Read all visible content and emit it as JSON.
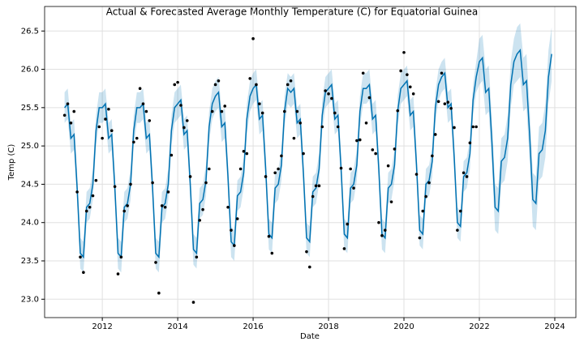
{
  "chart_data": {
    "type": "line",
    "title": "Actual & Forecasted Average Monthly Temperature (C) for Equatorial Guinea",
    "x_label": "Date",
    "y_label": "Temp (C)",
    "xlim": [
      2010.47,
      2024.56
    ],
    "ylim": [
      22.76,
      26.82
    ],
    "xticks": [
      2012,
      2014,
      2016,
      2018,
      2020,
      2022,
      2024
    ],
    "yticks": [
      {
        "value": 23,
        "label": "23.0"
      },
      23.5,
      {
        "value": 24,
        "label": "24.0"
      },
      24.5,
      {
        "value": 25,
        "label": "25.0"
      },
      25.5,
      {
        "value": 26,
        "label": "26.0"
      },
      26.5
    ],
    "grid": true,
    "color": "#0072B2",
    "band_color": "#0072B2",
    "point_color": "#000000",
    "x": [
      2011,
      2011.083,
      2011.167,
      2011.25,
      2011.333,
      2011.417,
      2011.5,
      2011.583,
      2011.667,
      2011.75,
      2011.833,
      2011.917,
      2012,
      2012.083,
      2012.167,
      2012.25,
      2012.333,
      2012.417,
      2012.5,
      2012.583,
      2012.667,
      2012.75,
      2012.833,
      2012.917,
      2013,
      2013.083,
      2013.167,
      2013.25,
      2013.333,
      2013.417,
      2013.5,
      2013.583,
      2013.667,
      2013.75,
      2013.833,
      2013.917,
      2014,
      2014.083,
      2014.167,
      2014.25,
      2014.333,
      2014.417,
      2014.5,
      2014.583,
      2014.667,
      2014.75,
      2014.833,
      2014.917,
      2015,
      2015.083,
      2015.167,
      2015.25,
      2015.333,
      2015.417,
      2015.5,
      2015.583,
      2015.667,
      2015.75,
      2015.833,
      2015.917,
      2016,
      2016.083,
      2016.167,
      2016.25,
      2016.333,
      2016.417,
      2016.5,
      2016.583,
      2016.667,
      2016.75,
      2016.833,
      2016.917,
      2017,
      2017.083,
      2017.167,
      2017.25,
      2017.333,
      2017.417,
      2017.5,
      2017.583,
      2017.667,
      2017.75,
      2017.833,
      2017.917,
      2018,
      2018.083,
      2018.167,
      2018.25,
      2018.333,
      2018.417,
      2018.5,
      2018.583,
      2018.667,
      2018.75,
      2018.833,
      2018.917,
      2019,
      2019.083,
      2019.167,
      2019.25,
      2019.333,
      2019.417,
      2019.5,
      2019.583,
      2019.667,
      2019.75,
      2019.833,
      2019.917,
      2020,
      2020.083,
      2020.167,
      2020.25,
      2020.333,
      2020.417,
      2020.5,
      2020.583,
      2020.667,
      2020.75,
      2020.833,
      2020.917,
      2021,
      2021.083,
      2021.167,
      2021.25,
      2021.333,
      2021.417,
      2021.5,
      2021.583,
      2021.667,
      2021.75,
      2021.833,
      2021.917,
      2022,
      2022.083,
      2022.167,
      2022.25,
      2022.333,
      2022.417,
      2022.5,
      2022.583,
      2022.667,
      2022.75,
      2022.833,
      2022.917,
      2023,
      2023.083,
      2023.167,
      2023.25,
      2023.333,
      2023.417,
      2023.5,
      2023.583,
      2023.667,
      2023.75,
      2023.833,
      2023.917
    ],
    "forecast": [
      25.5,
      25.55,
      25.1,
      25.15,
      24.45,
      23.6,
      23.55,
      24.2,
      24.25,
      24.5,
      25.2,
      25.5,
      25.5,
      25.55,
      25.1,
      25.15,
      24.45,
      23.6,
      23.55,
      24.2,
      24.25,
      24.5,
      25.2,
      25.5,
      25.5,
      25.55,
      25.1,
      25.15,
      24.45,
      23.6,
      23.55,
      24.2,
      24.25,
      24.5,
      25.2,
      25.5,
      25.55,
      25.6,
      25.15,
      25.2,
      24.5,
      23.65,
      23.6,
      24.25,
      24.3,
      24.55,
      25.25,
      25.55,
      25.65,
      25.7,
      25.25,
      25.3,
      24.6,
      23.75,
      23.7,
      24.35,
      24.4,
      24.65,
      25.35,
      25.65,
      25.75,
      25.8,
      25.35,
      25.4,
      24.7,
      23.85,
      23.8,
      24.45,
      24.5,
      24.75,
      25.45,
      25.75,
      25.7,
      25.75,
      25.3,
      25.35,
      24.65,
      23.8,
      23.75,
      24.4,
      24.45,
      24.7,
      25.4,
      25.7,
      25.75,
      25.8,
      25.35,
      25.4,
      24.7,
      23.85,
      23.8,
      24.45,
      24.5,
      24.75,
      25.45,
      25.75,
      25.75,
      25.8,
      25.35,
      25.4,
      24.7,
      23.85,
      23.8,
      24.45,
      24.5,
      24.75,
      25.45,
      25.75,
      25.8,
      25.85,
      25.4,
      25.45,
      24.75,
      23.9,
      23.85,
      24.5,
      24.55,
      24.8,
      25.5,
      25.8,
      25.9,
      25.95,
      25.5,
      25.55,
      24.85,
      24.0,
      23.95,
      24.6,
      24.65,
      24.9,
      25.6,
      25.9,
      26.1,
      26.15,
      25.7,
      25.75,
      25.05,
      24.2,
      24.15,
      24.8,
      24.85,
      25.1,
      25.8,
      26.1,
      26.2,
      26.25,
      25.8,
      25.85,
      25.15,
      24.3,
      24.25,
      24.9,
      24.95,
      25.2,
      25.9,
      26.2
    ],
    "lower": [
      25.3,
      25.35,
      24.9,
      24.95,
      24.25,
      23.4,
      23.35,
      24.0,
      24.05,
      24.3,
      25.0,
      25.3,
      25.3,
      25.35,
      24.9,
      24.95,
      24.25,
      23.4,
      23.35,
      24.0,
      24.05,
      24.3,
      25.0,
      25.3,
      25.3,
      25.35,
      24.9,
      24.95,
      24.25,
      23.4,
      23.35,
      24.0,
      24.05,
      24.3,
      25.0,
      25.3,
      25.35,
      25.4,
      24.95,
      25.0,
      24.3,
      23.45,
      23.4,
      24.05,
      24.1,
      24.35,
      25.05,
      25.35,
      25.45,
      25.5,
      25.05,
      25.1,
      24.4,
      23.55,
      23.5,
      24.15,
      24.2,
      24.45,
      25.15,
      25.45,
      25.55,
      25.6,
      25.15,
      25.2,
      24.5,
      23.65,
      23.6,
      24.25,
      24.3,
      24.55,
      25.25,
      25.55,
      25.5,
      25.55,
      25.1,
      25.15,
      24.45,
      23.6,
      23.55,
      24.2,
      24.25,
      24.5,
      25.2,
      25.5,
      25.55,
      25.6,
      25.15,
      25.2,
      24.5,
      23.65,
      23.6,
      24.25,
      24.3,
      24.55,
      25.25,
      25.55,
      25.55,
      25.6,
      25.15,
      25.2,
      24.5,
      23.65,
      23.6,
      24.25,
      24.3,
      24.55,
      25.25,
      25.55,
      25.6,
      25.65,
      25.2,
      25.25,
      24.55,
      23.7,
      23.65,
      24.3,
      24.35,
      24.6,
      25.3,
      25.6,
      25.7,
      25.75,
      25.3,
      25.35,
      24.65,
      23.8,
      23.75,
      24.4,
      24.45,
      24.7,
      25.4,
      25.7,
      25.8,
      25.85,
      25.4,
      25.45,
      24.75,
      23.9,
      23.85,
      24.5,
      24.55,
      24.8,
      25.5,
      25.8,
      25.85,
      25.9,
      25.45,
      25.5,
      24.8,
      23.95,
      23.9,
      24.55,
      24.6,
      24.85,
      25.55,
      25.85
    ],
    "upper": [
      25.7,
      25.75,
      25.3,
      25.35,
      24.65,
      23.8,
      23.75,
      24.4,
      24.45,
      24.7,
      25.4,
      25.7,
      25.7,
      25.75,
      25.3,
      25.35,
      24.65,
      23.8,
      23.75,
      24.4,
      24.45,
      24.7,
      25.4,
      25.7,
      25.7,
      25.75,
      25.3,
      25.35,
      24.65,
      23.8,
      23.75,
      24.4,
      24.45,
      24.7,
      25.4,
      25.7,
      25.75,
      25.8,
      25.35,
      25.4,
      24.7,
      23.85,
      23.8,
      24.45,
      24.5,
      24.75,
      25.45,
      25.75,
      25.85,
      25.9,
      25.45,
      25.5,
      24.8,
      23.95,
      23.9,
      24.55,
      24.6,
      24.85,
      25.55,
      25.85,
      25.95,
      26.0,
      25.55,
      25.6,
      24.9,
      24.05,
      24.0,
      24.65,
      24.7,
      24.95,
      25.65,
      25.95,
      25.9,
      25.95,
      25.5,
      25.55,
      24.85,
      24.0,
      23.95,
      24.6,
      24.65,
      24.9,
      25.6,
      25.9,
      25.95,
      26.0,
      25.55,
      25.6,
      24.9,
      24.05,
      24.0,
      24.65,
      24.7,
      24.95,
      25.65,
      25.95,
      25.95,
      26.0,
      25.55,
      25.6,
      24.9,
      24.05,
      24.0,
      24.65,
      24.7,
      24.95,
      25.65,
      25.95,
      26.0,
      26.05,
      25.6,
      25.65,
      24.95,
      24.1,
      24.05,
      24.7,
      24.75,
      25.0,
      25.7,
      26.0,
      26.1,
      26.15,
      25.7,
      25.75,
      25.05,
      24.2,
      24.15,
      24.8,
      24.85,
      25.1,
      25.8,
      26.1,
      26.4,
      26.45,
      26.0,
      26.05,
      25.35,
      24.5,
      24.45,
      25.1,
      25.15,
      25.4,
      26.1,
      26.4,
      26.55,
      26.6,
      26.15,
      26.2,
      25.5,
      24.65,
      24.6,
      25.25,
      25.3,
      25.55,
      26.25,
      26.55
    ],
    "actual": [
      25.4,
      25.55,
      25.3,
      25.45,
      24.4,
      23.55,
      23.35,
      24.15,
      24.2,
      24.35,
      24.55,
      25.25,
      25.1,
      25.35,
      25.48,
      25.2,
      24.47,
      23.33,
      23.55,
      24.15,
      24.22,
      24.5,
      25.05,
      25.1,
      25.75,
      25.55,
      25.45,
      25.33,
      24.52,
      23.48,
      23.08,
      24.22,
      24.2,
      24.4,
      24.88,
      25.8,
      25.83,
      25.53,
      25.24,
      25.33,
      24.6,
      22.96,
      23.55,
      24.03,
      24.17,
      24.52,
      24.7,
      25.45,
      25.8,
      25.85,
      25.45,
      25.52,
      24.2,
      23.9,
      23.7,
      24.05,
      24.7,
      24.93,
      24.9,
      25.88,
      26.4,
      25.8,
      25.55,
      25.43,
      24.6,
      23.82,
      23.6,
      24.65,
      24.7,
      24.87,
      25.45,
      25.8,
      25.85,
      25.1,
      25.45,
      25.3,
      24.9,
      23.62,
      23.42,
      24.34,
      24.48,
      24.48,
      25.25,
      25.72,
      25.68,
      25.62,
      25.43,
      25.25,
      24.71,
      23.66,
      23.98,
      24.7,
      24.45,
      25.07,
      25.08,
      25.95,
      25.3,
      25.63,
      24.95,
      24.9,
      24.0,
      23.83,
      23.9,
      24.74,
      24.27,
      24.96,
      25.46,
      25.98,
      26.22,
      25.93,
      25.77,
      25.68,
      24.63,
      23.8,
      24.15,
      24.34,
      24.52,
      24.87,
      25.15,
      25.58,
      25.95,
      25.55,
      25.57,
      25.49,
      25.24,
      23.9,
      24.15,
      24.65,
      24.6,
      25.04,
      25.25,
      25.25,
      null,
      null,
      null,
      null,
      null,
      null,
      null,
      null,
      null,
      null,
      null,
      null,
      null,
      null,
      null,
      null,
      null,
      null,
      null,
      null,
      null,
      null,
      null,
      null
    ]
  }
}
